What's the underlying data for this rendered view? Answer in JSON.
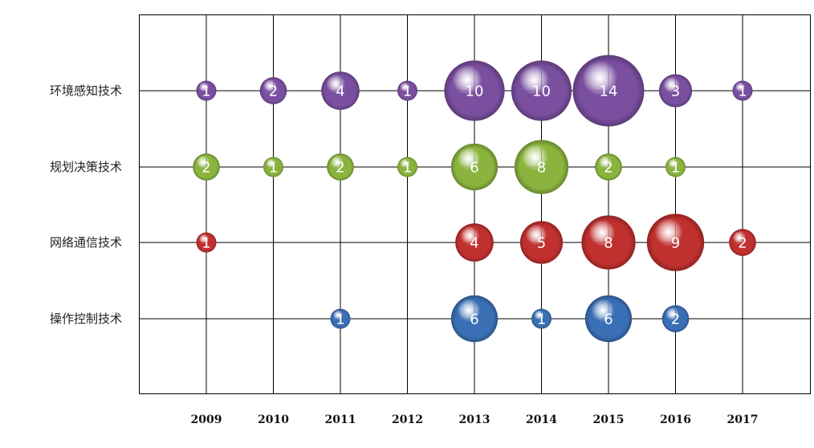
{
  "chart_data": {
    "type": "bubble",
    "years": [
      "2009",
      "2010",
      "2011",
      "2012",
      "2013",
      "2014",
      "2015",
      "2016",
      "2017"
    ],
    "categories": [
      "环境感知技术",
      "规划决策技术",
      "网络通信技术",
      "操作控制技术"
    ],
    "colors": {
      "环境感知技术": "#7a4fa0",
      "规划决策技术": "#8ab43e",
      "网络通信技术": "#c0302e",
      "操作控制技术": "#3a6fb5"
    },
    "series": [
      {
        "category": "环境感知技术",
        "values": [
          1,
          2,
          4,
          1,
          10,
          10,
          14,
          3,
          1
        ]
      },
      {
        "category": "规划决策技术",
        "values": [
          2,
          1,
          2,
          1,
          6,
          8,
          2,
          1,
          null
        ]
      },
      {
        "category": "网络通信技术",
        "values": [
          1,
          null,
          null,
          null,
          4,
          5,
          8,
          9,
          2
        ]
      },
      {
        "category": "操作控制技术",
        "values": [
          null,
          null,
          1,
          null,
          6,
          1,
          6,
          2,
          null
        ]
      }
    ],
    "grid": true,
    "legend": "none"
  }
}
